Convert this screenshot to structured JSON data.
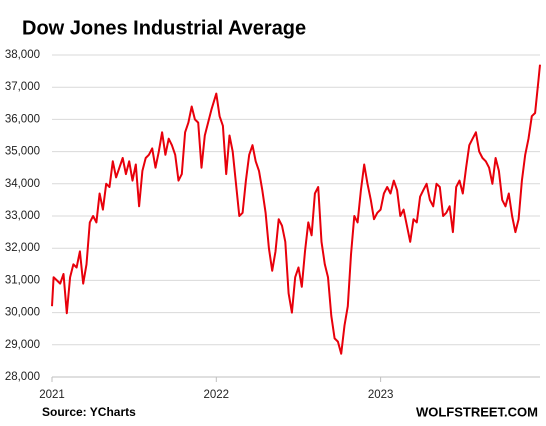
{
  "chart_data": {
    "type": "line",
    "title": "Dow Jones Industrial Average",
    "source": "Source: YCharts",
    "watermark": "WOLFSTREET.COM",
    "color": "#e8000b",
    "grid": true,
    "xlim": [
      2021,
      2023.97
    ],
    "xticks": [
      2021,
      2022,
      2023
    ],
    "ylim": [
      28000,
      38000
    ],
    "yticks": [
      {
        "value": 28000,
        "label": "28,000"
      },
      {
        "value": 29000,
        "label": "29,000"
      },
      {
        "value": 30000,
        "label": "30,000"
      },
      {
        "value": 31000,
        "label": "31,000"
      },
      {
        "value": 32000,
        "label": "32,000"
      },
      {
        "value": 33000,
        "label": "33,000"
      },
      {
        "value": 34000,
        "label": "34,000"
      },
      {
        "value": 35000,
        "label": "35,000"
      },
      {
        "value": 36000,
        "label": "36,000"
      },
      {
        "value": 37000,
        "label": "37,000"
      },
      {
        "value": 38000,
        "label": "38,000"
      }
    ],
    "x": [
      2021.0,
      2021.01,
      2021.03,
      2021.05,
      2021.07,
      2021.09,
      2021.11,
      2021.13,
      2021.15,
      2021.17,
      2021.19,
      2021.21,
      2021.23,
      2021.25,
      2021.27,
      2021.29,
      2021.31,
      2021.33,
      2021.35,
      2021.37,
      2021.39,
      2021.41,
      2021.43,
      2021.45,
      2021.47,
      2021.49,
      2021.51,
      2021.53,
      2021.55,
      2021.57,
      2021.59,
      2021.61,
      2021.63,
      2021.65,
      2021.67,
      2021.69,
      2021.71,
      2021.73,
      2021.75,
      2021.77,
      2021.79,
      2021.81,
      2021.83,
      2021.85,
      2021.87,
      2021.89,
      2021.91,
      2021.93,
      2021.95,
      2021.97,
      2022.0,
      2022.02,
      2022.04,
      2022.06,
      2022.08,
      2022.1,
      2022.12,
      2022.14,
      2022.16,
      2022.18,
      2022.2,
      2022.22,
      2022.24,
      2022.26,
      2022.28,
      2022.3,
      2022.32,
      2022.34,
      2022.36,
      2022.38,
      2022.4,
      2022.42,
      2022.44,
      2022.46,
      2022.48,
      2022.5,
      2022.52,
      2022.54,
      2022.56,
      2022.58,
      2022.6,
      2022.62,
      2022.64,
      2022.66,
      2022.68,
      2022.7,
      2022.72,
      2022.74,
      2022.76,
      2022.78,
      2022.8,
      2022.82,
      2022.84,
      2022.86,
      2022.88,
      2022.9,
      2022.92,
      2022.94,
      2022.96,
      2022.98,
      2023.0,
      2023.02,
      2023.04,
      2023.06,
      2023.08,
      2023.1,
      2023.12,
      2023.14,
      2023.16,
      2023.18,
      2023.2,
      2023.22,
      2023.24,
      2023.26,
      2023.28,
      2023.3,
      2023.32,
      2023.34,
      2023.36,
      2023.38,
      2023.4,
      2023.42,
      2023.44,
      2023.46,
      2023.48,
      2023.5,
      2023.52,
      2023.54,
      2023.56,
      2023.58,
      2023.6,
      2023.62,
      2023.64,
      2023.66,
      2023.68,
      2023.7,
      2023.72,
      2023.74,
      2023.76,
      2023.78,
      2023.8,
      2023.82,
      2023.84,
      2023.86,
      2023.88,
      2023.9,
      2023.92,
      2023.94,
      2023.96,
      2023.97
    ],
    "values": [
      30200,
      31100,
      31000,
      30900,
      31200,
      29980,
      31100,
      31500,
      31400,
      31900,
      30900,
      31500,
      32800,
      33000,
      32800,
      33700,
      33200,
      34000,
      33900,
      34700,
      34200,
      34500,
      34800,
      34300,
      34700,
      34100,
      34600,
      33300,
      34400,
      34800,
      34900,
      35100,
      34500,
      35000,
      35600,
      34900,
      35400,
      35200,
      34900,
      34100,
      34300,
      35600,
      35900,
      36400,
      36000,
      35900,
      34500,
      35500,
      35900,
      36300,
      36800,
      36100,
      35800,
      34300,
      35500,
      35000,
      34000,
      33000,
      33100,
      34100,
      34900,
      35200,
      34700,
      34400,
      33800,
      33100,
      32000,
      31300,
      31900,
      32900,
      32700,
      32200,
      30600,
      30000,
      31100,
      31400,
      30800,
      31900,
      32800,
      32400,
      33700,
      33900,
      32200,
      31500,
      31100,
      29900,
      29200,
      29100,
      28725,
      29600,
      30200,
      31800,
      33000,
      32800,
      33800,
      34600,
      34000,
      33500,
      32900,
      33100,
      33200,
      33700,
      33900,
      33700,
      34100,
      33800,
      33000,
      33200,
      32700,
      32200,
      32900,
      32800,
      33600,
      33800,
      34000,
      33500,
      33300,
      34000,
      33900,
      33000,
      33100,
      33300,
      32500,
      33900,
      34100,
      33700,
      34500,
      35200,
      35400,
      35600,
      35000,
      34800,
      34700,
      34500,
      34000,
      34800,
      34400,
      33500,
      33300,
      33700,
      33000,
      32500,
      32900,
      34100,
      34900,
      35400,
      36100,
      36200,
      37200,
      37700
    ]
  }
}
